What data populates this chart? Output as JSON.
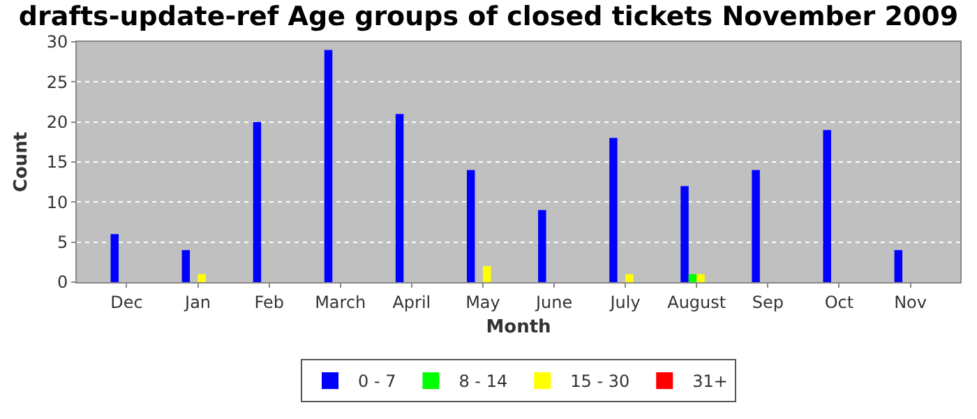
{
  "chart_data": {
    "type": "bar",
    "title": "drafts-update-ref Age groups of closed tickets November 2009",
    "xlabel": "Month",
    "ylabel": "Count",
    "categories": [
      "Dec",
      "Jan",
      "Feb",
      "March",
      "April",
      "May",
      "June",
      "July",
      "August",
      "Sep",
      "Oct",
      "Nov"
    ],
    "series": [
      {
        "name": "0 - 7",
        "color": "#0000ff",
        "values": [
          6,
          4,
          20,
          29,
          21,
          14,
          9,
          18,
          12,
          14,
          19,
          4
        ]
      },
      {
        "name": "8 - 14",
        "color": "#00ff00",
        "values": [
          0,
          0,
          0,
          0,
          0,
          0,
          0,
          0,
          1,
          0,
          0,
          0
        ]
      },
      {
        "name": "15 - 30",
        "color": "#ffff00",
        "values": [
          0,
          1,
          0,
          0,
          0,
          2,
          0,
          1,
          1,
          0,
          0,
          0
        ]
      },
      {
        "name": "31+",
        "color": "#ff0000",
        "values": [
          0,
          0,
          0,
          0,
          0,
          0,
          0,
          0,
          0,
          0,
          0,
          0
        ]
      }
    ],
    "ylim": [
      0,
      30
    ],
    "yticks": [
      0,
      5,
      10,
      15,
      20,
      25,
      30
    ],
    "grid": "y",
    "legend": "bottom"
  }
}
